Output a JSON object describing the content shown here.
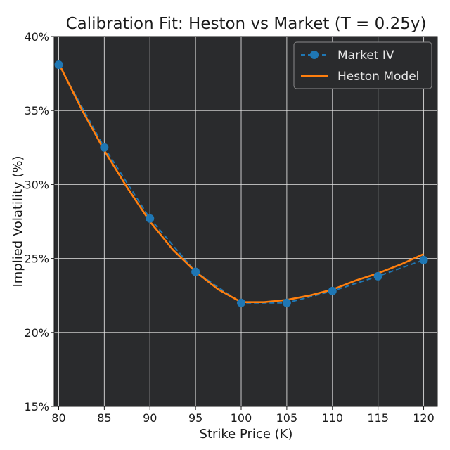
{
  "chart_data": {
    "type": "line",
    "title": "Calibration Fit: Heston vs Market (T = 0.25y)",
    "xlabel": "Strike Price (K)",
    "ylabel": "Implied Volatility (%)",
    "xlim": [
      79.5,
      121.5
    ],
    "ylim": [
      15,
      40
    ],
    "xticks": [
      80,
      85,
      90,
      95,
      100,
      105,
      110,
      115,
      120
    ],
    "xtick_labels": [
      "80",
      "85",
      "90",
      "95",
      "100",
      "105",
      "110",
      "115",
      "120"
    ],
    "yticks": [
      15,
      20,
      25,
      30,
      35,
      40
    ],
    "ytick_labels": [
      "15%",
      "20%",
      "25%",
      "30%",
      "35%",
      "40%"
    ],
    "grid": true,
    "legend_position": "top-right",
    "background": "#2a2b2d",
    "series": [
      {
        "name": "Market IV",
        "style": "dashed-markers",
        "color": "#1f77b4",
        "x": [
          80,
          85,
          90,
          95,
          100,
          105,
          110,
          115,
          120
        ],
        "y": [
          38.1,
          32.5,
          27.7,
          24.1,
          22.0,
          22.0,
          22.8,
          23.8,
          24.9
        ]
      },
      {
        "name": "Heston Model",
        "style": "solid",
        "color": "#ff7f0e",
        "x": [
          80,
          82.5,
          85,
          87.5,
          90,
          92.5,
          95,
          97.5,
          100,
          102.5,
          105,
          107.5,
          110,
          112.5,
          115,
          117.5,
          120
        ],
        "y": [
          38.2,
          35.1,
          32.3,
          29.8,
          27.5,
          25.6,
          24.1,
          22.9,
          22.05,
          22.05,
          22.2,
          22.5,
          22.9,
          23.5,
          24.0,
          24.6,
          25.3
        ]
      }
    ]
  }
}
